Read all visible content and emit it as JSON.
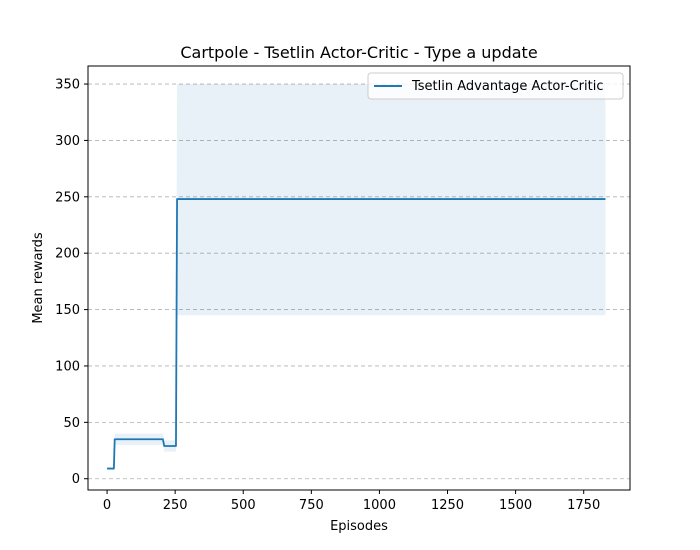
{
  "chart_data": {
    "type": "line",
    "title": "Cartpole - Tsetlin Actor-Critic - Type a update",
    "xlabel": "Episodes",
    "ylabel": "Mean rewards",
    "xlim": [
      -70,
      1920
    ],
    "ylim": [
      -10,
      366
    ],
    "xticks": [
      0,
      250,
      500,
      750,
      1000,
      1250,
      1500,
      1750
    ],
    "yticks": [
      0,
      50,
      100,
      150,
      200,
      250,
      300,
      350
    ],
    "grid": "y-dashed",
    "legend": {
      "placement": "top-right",
      "entries": [
        "Tsetlin Advantage Actor-Critic"
      ]
    },
    "colors": {
      "line": "#1f77b4",
      "band": "#1f77b4"
    },
    "series": [
      {
        "name": "Tsetlin Advantage Actor-Critic",
        "x": [
          0,
          25,
          28,
          100,
          150,
          205,
          210,
          250,
          253,
          257,
          1000,
          1830
        ],
        "y": [
          9,
          9,
          35,
          35,
          35,
          35,
          29,
          29,
          29,
          248,
          248,
          248
        ],
        "band_x": [
          0,
          25,
          28,
          100,
          150,
          205,
          210,
          250,
          253,
          257,
          1000,
          1830
        ],
        "band_low": [
          9,
          9,
          30,
          30,
          30,
          30,
          24,
          24,
          24,
          145,
          145,
          145
        ],
        "band_high": [
          9,
          9,
          40,
          40,
          40,
          40,
          34,
          34,
          34,
          350,
          350,
          350
        ]
      }
    ]
  }
}
